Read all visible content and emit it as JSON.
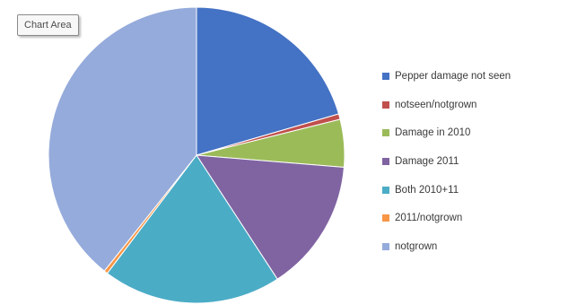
{
  "tooltip": "Chart Area",
  "chart_data": {
    "type": "pie",
    "title": "",
    "labels": [
      "Pepper damage not seen",
      "notseen/notgrown",
      "Damage in 2010",
      "Damage 2011",
      "Both 2010+11",
      "2011/notgrown",
      "notgrown"
    ],
    "values": [
      20.5,
      0.6,
      5.2,
      14.5,
      19.5,
      0.4,
      39.3
    ],
    "colors": [
      "#4472c4",
      "#c0504d",
      "#9bbb59",
      "#8064a2",
      "#4bacc6",
      "#f79646",
      "#95abdb"
    ],
    "start_angle_deg": 0,
    "direction": "clockwise",
    "legend_position": "right"
  }
}
